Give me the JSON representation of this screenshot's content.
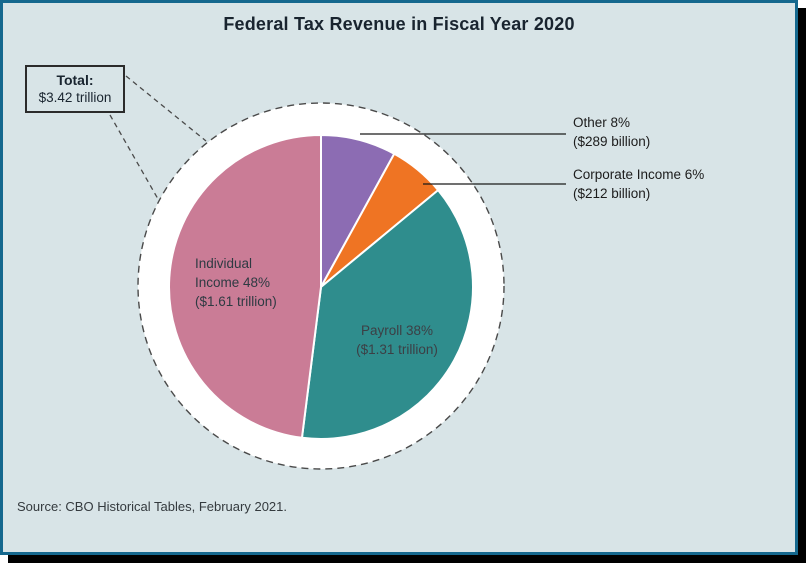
{
  "title": "Federal Tax Revenue in Fiscal Year 2020",
  "total_box": {
    "label": "Total:",
    "value": "$3.42 trillion"
  },
  "source": "Source: CBO Historical Tables, February 2021.",
  "colors": {
    "background": "#d8e4e7",
    "frame_border": "#15688e",
    "frame_shadow": "#000000",
    "pie_backing": "#ffffff",
    "dashed_circle": "#4a4a4a",
    "text": "#19242f"
  },
  "chart_data": {
    "type": "pie",
    "title": "Federal Tax Revenue in Fiscal Year 2020",
    "total_annotation": "Total: $3.42 trillion",
    "start_angle": "12 o'clock",
    "direction": "clockwise",
    "legend": "none",
    "source": "Source: CBO Historical Tables, February 2021.",
    "slices": [
      {
        "name": "Other",
        "percent": 8,
        "amount": "$289 billion",
        "color": "#8c6cb3",
        "label_placement": "outside-right",
        "label_lines": [
          "Other 8%",
          "($289 billion)"
        ]
      },
      {
        "name": "Corporate Income",
        "percent": 6,
        "amount": "$212 billion",
        "color": "#ef7423",
        "label_placement": "outside-right",
        "label_lines": [
          "Corporate Income 6%",
          "($212 billion)"
        ]
      },
      {
        "name": "Payroll",
        "percent": 38,
        "amount": "$1.31 trillion",
        "color": "#2f8d8d",
        "label_placement": "inside",
        "label_lines": [
          "Payroll 38%",
          "($1.31 trillion)"
        ]
      },
      {
        "name": "Individual Income",
        "percent": 48,
        "amount": "$1.61 trillion",
        "color": "#ca7c96",
        "label_placement": "inside",
        "label_lines": [
          "Individual",
          "Income 48%",
          "($1.61 trillion)"
        ]
      }
    ]
  }
}
